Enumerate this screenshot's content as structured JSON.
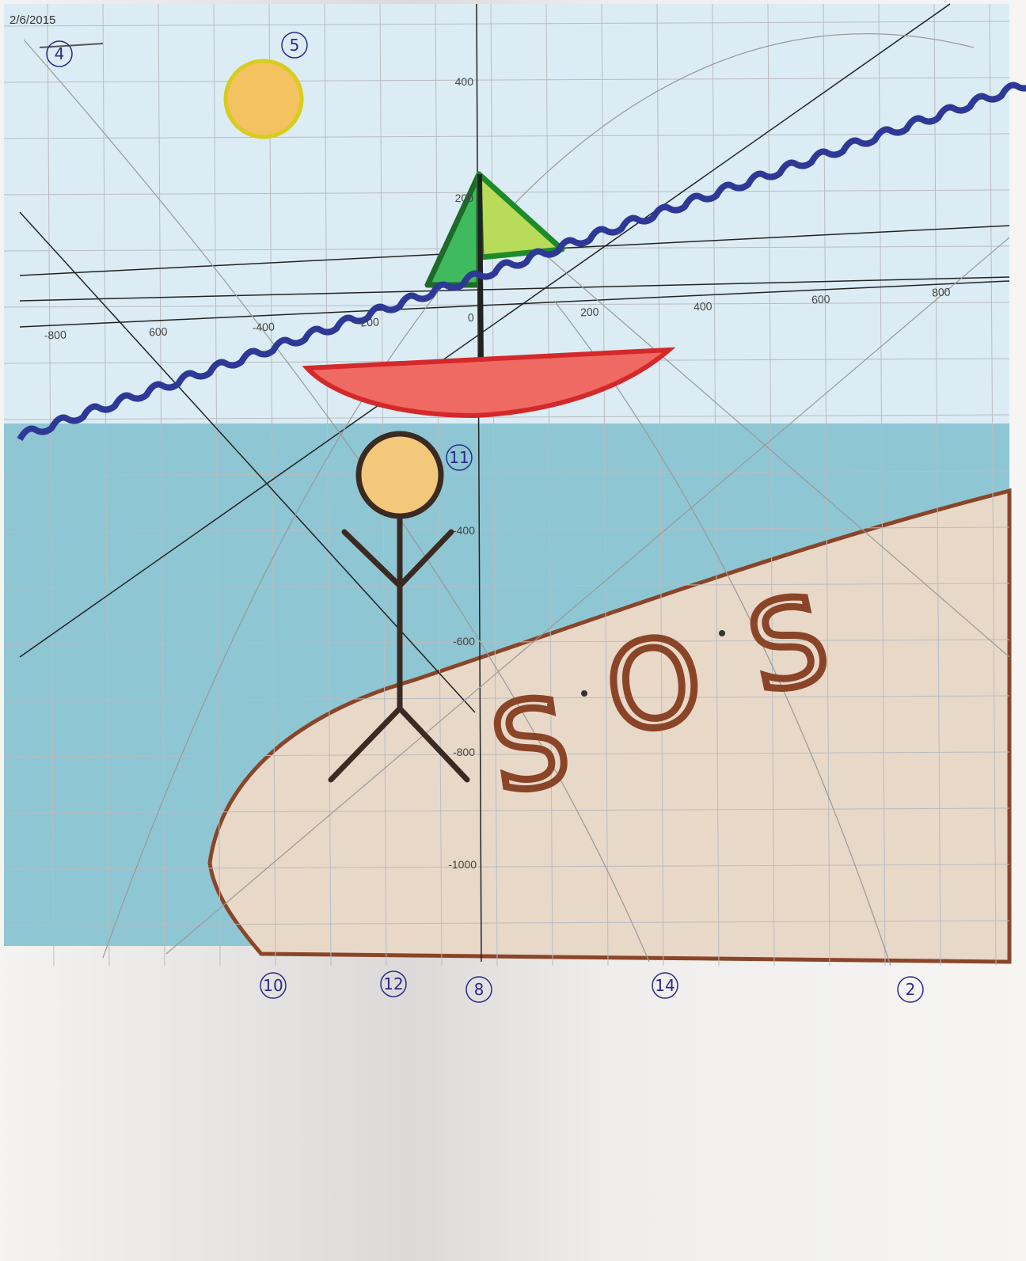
{
  "header": {
    "date": "2/6/2015"
  },
  "x_axis_labels": [
    "-800",
    "600",
    "-400",
    "-200",
    "0",
    "200",
    "400",
    "600",
    "800"
  ],
  "y_axis_labels": [
    "400",
    "200",
    "-400",
    "-600",
    "-800",
    "-1000"
  ],
  "circled_labels": [
    "4",
    "5",
    "11",
    "10",
    "12",
    "8",
    "14",
    "2"
  ],
  "sign": [
    "S",
    "O",
    "S"
  ]
}
